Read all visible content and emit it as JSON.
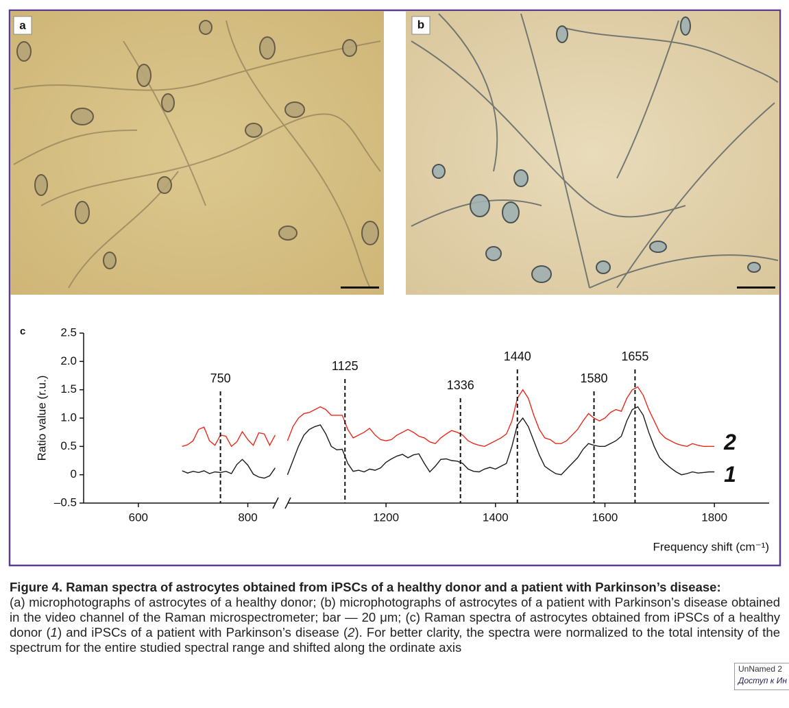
{
  "panels": {
    "a": "a",
    "b": "b"
  },
  "chart_data": {
    "type": "line",
    "panel_label": "c",
    "y_label": "Ratio value (r.u.)",
    "x_label": "Frequency shift (cm⁻¹)",
    "xlim": [
      500,
      1900
    ],
    "xbreak": [
      850,
      1020
    ],
    "ylim": [
      -0.5,
      2.5
    ],
    "xticks": [
      600,
      800,
      1200,
      1400,
      1600,
      1800
    ],
    "yticks": [
      {
        "value": -0.5,
        "label": "–0.5"
      },
      0,
      0.5,
      {
        "value": 1.0,
        "label": "1.0"
      },
      1.5,
      {
        "value": 2.0,
        "label": "2.0"
      },
      2.5
    ],
    "peaks": [
      750,
      1125,
      1336,
      1440,
      1580,
      1655
    ],
    "x": [
      680,
      690,
      700,
      710,
      720,
      730,
      740,
      750,
      760,
      770,
      780,
      790,
      800,
      810,
      820,
      830,
      840,
      850,
      1020,
      1030,
      1040,
      1050,
      1060,
      1070,
      1080,
      1090,
      1100,
      1110,
      1120,
      1130,
      1140,
      1150,
      1160,
      1170,
      1180,
      1190,
      1200,
      1210,
      1220,
      1230,
      1240,
      1250,
      1260,
      1270,
      1280,
      1290,
      1300,
      1310,
      1320,
      1330,
      1340,
      1350,
      1360,
      1370,
      1380,
      1390,
      1400,
      1410,
      1420,
      1430,
      1440,
      1450,
      1460,
      1470,
      1480,
      1490,
      1500,
      1510,
      1520,
      1530,
      1540,
      1550,
      1560,
      1570,
      1580,
      1590,
      1600,
      1610,
      1620,
      1630,
      1640,
      1650,
      1660,
      1670,
      1680,
      1690,
      1700,
      1710,
      1720,
      1730,
      1740,
      1750,
      1760,
      1770,
      1780,
      1790,
      1800
    ],
    "series": [
      {
        "name": "1",
        "color": "#1a1a1a",
        "values": [
          0.07,
          0.03,
          0.06,
          0.04,
          0.07,
          0.02,
          0.05,
          0.04,
          0.06,
          0.02,
          0.18,
          0.27,
          0.17,
          0.01,
          -0.04,
          -0.06,
          -0.02,
          0.12,
          0.0,
          0.25,
          0.5,
          0.7,
          0.8,
          0.85,
          0.88,
          0.72,
          0.5,
          0.44,
          0.45,
          0.2,
          0.06,
          0.08,
          0.05,
          0.1,
          0.08,
          0.12,
          0.22,
          0.28,
          0.33,
          0.36,
          0.3,
          0.35,
          0.37,
          0.2,
          0.05,
          0.15,
          0.27,
          0.28,
          0.25,
          0.24,
          0.2,
          0.1,
          0.06,
          0.05,
          0.1,
          0.13,
          0.1,
          0.15,
          0.2,
          0.5,
          0.88,
          1.0,
          0.85,
          0.6,
          0.35,
          0.15,
          0.08,
          0.02,
          0.0,
          0.1,
          0.2,
          0.3,
          0.45,
          0.55,
          0.52,
          0.5,
          0.5,
          0.55,
          0.6,
          0.68,
          0.95,
          1.15,
          1.2,
          1.05,
          0.75,
          0.5,
          0.3,
          0.2,
          0.12,
          0.05,
          0.0,
          0.02,
          0.05,
          0.03,
          0.04,
          0.05,
          0.05
        ]
      },
      {
        "name": "2",
        "color": "#e8291c",
        "values": [
          0.5,
          0.53,
          0.6,
          0.8,
          0.84,
          0.6,
          0.52,
          0.7,
          0.68,
          0.5,
          0.58,
          0.76,
          0.62,
          0.52,
          0.74,
          0.72,
          0.52,
          0.7,
          0.6,
          0.85,
          1.0,
          1.08,
          1.1,
          1.15,
          1.2,
          1.15,
          1.05,
          1.05,
          1.05,
          0.8,
          0.65,
          0.7,
          0.75,
          0.82,
          0.7,
          0.62,
          0.6,
          0.62,
          0.7,
          0.75,
          0.8,
          0.75,
          0.68,
          0.65,
          0.58,
          0.55,
          0.65,
          0.72,
          0.78,
          0.75,
          0.7,
          0.6,
          0.55,
          0.52,
          0.5,
          0.55,
          0.6,
          0.65,
          0.72,
          0.95,
          1.35,
          1.5,
          1.35,
          1.05,
          0.8,
          0.65,
          0.62,
          0.55,
          0.55,
          0.6,
          0.7,
          0.8,
          0.95,
          1.08,
          1.0,
          0.95,
          1.0,
          1.1,
          1.15,
          1.12,
          1.35,
          1.5,
          1.55,
          1.4,
          1.15,
          0.95,
          0.75,
          0.65,
          0.6,
          0.55,
          0.52,
          0.5,
          0.55,
          0.52,
          0.5,
          0.5,
          0.5
        ]
      }
    ]
  },
  "caption": {
    "title": "Figure 4. Raman spectra of astrocytes obtained from iPSCs of a healthy donor and a patient with Parkinson’s disease:",
    "body": [
      "(a) microphotographs of astrocytes of a healthy donor; (b) microphotographs of astrocytes of a patient with Parkinson’s disease obtained in the video channel of the Raman microspectrometer; bar — 20 μm; (c) Raman spectra of astrocytes obtained from iPSCs of a healthy donor (",
      "1",
      ") and iPSCs of a patient with Parkinson’s disease (",
      "2",
      "). For better clarity, the spectra were normalized to the total intensity of the spectrum for the entire studied spectral range and shifted along the ordinate axis"
    ]
  },
  "overlay": {
    "name": "UnNamed 2",
    "link": "Доступ к Ин"
  }
}
